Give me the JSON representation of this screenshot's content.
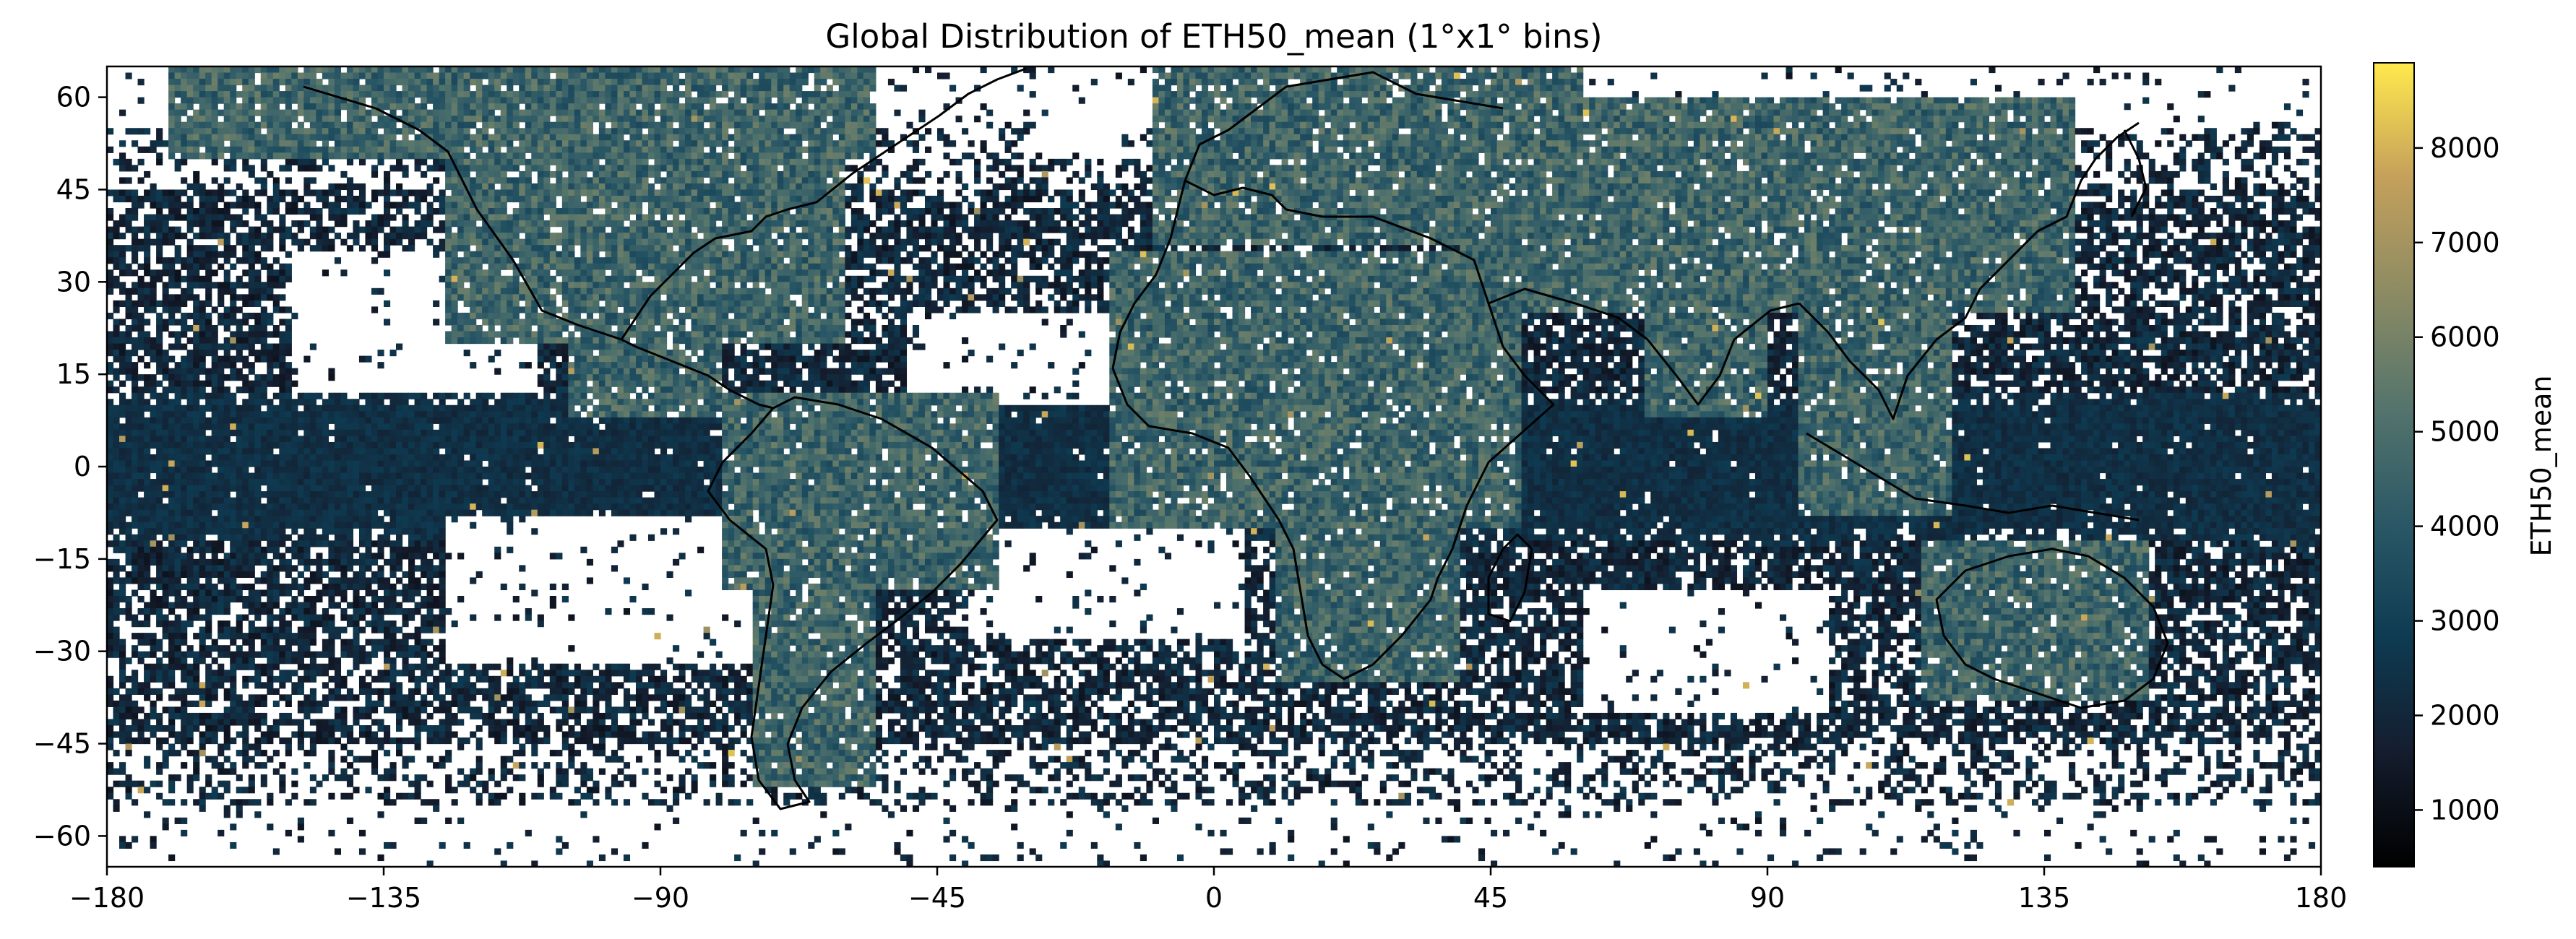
{
  "chart_data": {
    "type": "heatmap",
    "title": "Global Distribution of ETH50_mean (1°x1° bins)",
    "xlabel": "",
    "ylabel": "",
    "xlim": [
      -180,
      180
    ],
    "ylim": [
      -65,
      65
    ],
    "x_ticks": [
      -180,
      -135,
      -90,
      -45,
      0,
      45,
      90,
      135,
      180
    ],
    "y_ticks": [
      60,
      45,
      30,
      15,
      0,
      -15,
      -30,
      -45,
      -60
    ],
    "x_tick_labels": [
      "−180",
      "−135",
      "−90",
      "−45",
      "0",
      "45",
      "90",
      "135",
      "180"
    ],
    "y_tick_labels": [
      "60",
      "45",
      "30",
      "15",
      "0",
      "−15",
      "−30",
      "−45",
      "−60"
    ],
    "bin_size_deg": 1,
    "colorbar": {
      "label": "ETH50_mean",
      "range": [
        400,
        8900
      ],
      "ticks": [
        1000,
        2000,
        3000,
        4000,
        5000,
        6000,
        7000,
        8000
      ],
      "tick_labels": [
        "1000",
        "2000",
        "3000",
        "4000",
        "5000",
        "6000",
        "7000",
        "8000"
      ],
      "colors": [
        "#000000",
        "#141d2e",
        "#0e3b52",
        "#2b5866",
        "#54746c",
        "#8c8b63",
        "#c4a05b",
        "#ffe94d"
      ]
    },
    "grid": false,
    "colormap": "cmc.batlow-like (dark navy → teal → tan → yellow)"
  }
}
